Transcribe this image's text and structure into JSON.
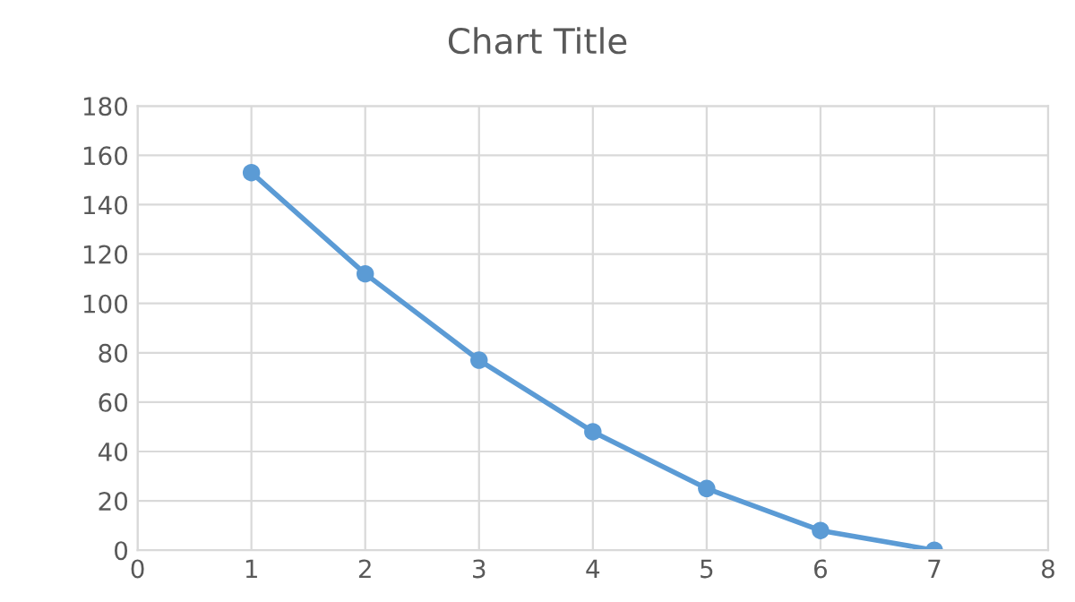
{
  "chart_data": {
    "type": "line",
    "title": "Chart Title",
    "x": [
      1,
      2,
      3,
      4,
      5,
      6,
      7
    ],
    "series": [
      {
        "color": "#5b9bd5",
        "values": [
          153,
          112,
          77,
          48,
          25,
          8,
          0
        ]
      }
    ],
    "xlim": [
      0,
      8
    ],
    "xticks": [
      0,
      1,
      2,
      3,
      4,
      5,
      6,
      7,
      8
    ],
    "ylim": [
      0,
      180
    ],
    "yticks": [
      0,
      20,
      40,
      60,
      80,
      100,
      120,
      140,
      160,
      180
    ],
    "grid": true,
    "marker": "circle",
    "line_style": "solid",
    "legend": false
  }
}
